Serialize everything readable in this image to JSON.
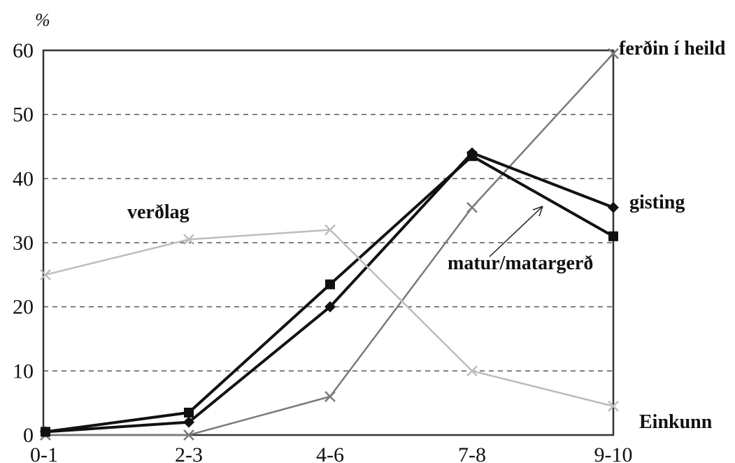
{
  "chart_data": {
    "type": "line",
    "title": "",
    "ylabel": "%",
    "xlabel": "Einkunn",
    "categories": [
      "0-1",
      "2-3",
      "4-6",
      "7-8",
      "9-10"
    ],
    "ylim": [
      0,
      60
    ],
    "yticks": [
      0,
      10,
      20,
      30,
      40,
      50,
      60
    ],
    "grid": true,
    "series": [
      {
        "name": "ferðin í heild",
        "marker": "x",
        "color": "#7a7a7a",
        "values": [
          0,
          0,
          6,
          35.5,
          59.5
        ]
      },
      {
        "name": "gisting",
        "marker": "diamond",
        "color": "#111111",
        "values": [
          0.5,
          2,
          20,
          44,
          35.5
        ]
      },
      {
        "name": "matur/matargerð",
        "marker": "square",
        "color": "#111111",
        "values": [
          0.5,
          3.5,
          23.5,
          43.5,
          31
        ]
      },
      {
        "name": "verðlag",
        "marker": "x-light",
        "color": "#bdbdbd",
        "values": [
          25,
          30.5,
          32,
          10,
          4.5
        ]
      }
    ]
  }
}
